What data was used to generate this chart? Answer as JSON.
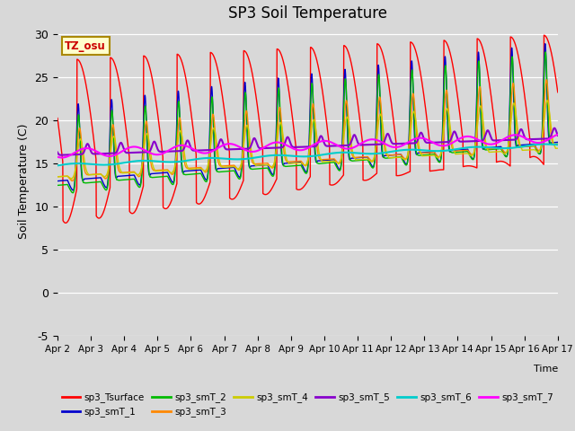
{
  "title": "SP3 Soil Temperature",
  "ylabel": "Soil Temperature (C)",
  "xlabel": "Time",
  "annotation": "TZ_osu",
  "ylim": [
    -5,
    31
  ],
  "series_colors": {
    "sp3_Tsurface": "#ff0000",
    "sp3_smT_1": "#0000cc",
    "sp3_smT_2": "#00bb00",
    "sp3_smT_3": "#ff8800",
    "sp3_smT_4": "#cccc00",
    "sp3_smT_5": "#8800cc",
    "sp3_smT_6": "#00cccc",
    "sp3_smT_7": "#ff00ff"
  },
  "xtick_labels": [
    "Apr 2",
    "Apr 3",
    "Apr 4",
    "Apr 5",
    "Apr 6",
    "Apr 7",
    "Apr 8",
    "Apr 9",
    "Apr 10",
    "Apr 11",
    "Apr 12",
    "Apr 13",
    "Apr 14",
    "Apr 15",
    "Apr 16",
    "Apr 17"
  ],
  "ytick_labels": [
    "-5",
    "0",
    "5",
    "10",
    "15",
    "20",
    "25",
    "30"
  ],
  "ytick_vals": [
    -5,
    0,
    5,
    10,
    15,
    20,
    25,
    30
  ],
  "n_points": 2000
}
